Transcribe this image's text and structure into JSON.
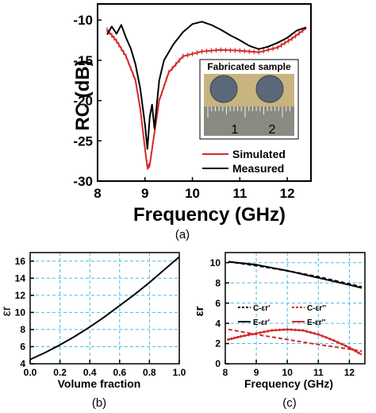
{
  "chart_data": [
    {
      "type": "line",
      "caption": "(a)",
      "xlabel": "Frequency (GHz)",
      "ylabel": "RC (dB)",
      "xlim": [
        8,
        12.5
      ],
      "ylim": [
        -30,
        -8
      ],
      "xticks": [
        "8",
        "9",
        "10",
        "11",
        "12"
      ],
      "yticks": [
        "-10",
        "-15",
        "-20",
        "-25",
        "-30"
      ],
      "grid": false,
      "legend": "bottom-right",
      "inset": {
        "title": "Fabricated sample",
        "ruler_labels": [
          "1",
          "2"
        ]
      },
      "series": [
        {
          "name": "Simulated",
          "color": "#d42a2a",
          "marker": "tick",
          "x": [
            8.2,
            8.4,
            8.6,
            8.8,
            8.9,
            9.0,
            9.05,
            9.1,
            9.2,
            9.3,
            9.5,
            9.8,
            10.2,
            10.6,
            11.0,
            11.4,
            11.8,
            12.1,
            12.4
          ],
          "y": [
            -11.2,
            -12.6,
            -14.5,
            -17.5,
            -21,
            -26,
            -28.3,
            -28,
            -24,
            -20,
            -16.5,
            -14.5,
            -13.9,
            -13.7,
            -13.8,
            -14.0,
            -13.4,
            -12.3,
            -11.0
          ]
        },
        {
          "name": "Measured",
          "color": "#000000",
          "marker": "none",
          "x": [
            8.2,
            8.3,
            8.4,
            8.5,
            8.6,
            8.7,
            8.8,
            8.9,
            9.0,
            9.05,
            9.1,
            9.15,
            9.2,
            9.3,
            9.4,
            9.6,
            9.8,
            10.0,
            10.2,
            10.4,
            10.6,
            10.8,
            11.0,
            11.2,
            11.4,
            11.6,
            11.8,
            12.0,
            12.2,
            12.4
          ],
          "y": [
            -11.8,
            -10.8,
            -11.7,
            -10.6,
            -12.2,
            -13.5,
            -15.5,
            -18.5,
            -23,
            -26,
            -22,
            -20.5,
            -23.5,
            -17.5,
            -15.0,
            -13.0,
            -11.5,
            -10.5,
            -10.2,
            -10.6,
            -11.2,
            -11.9,
            -12.5,
            -13.2,
            -13.6,
            -13.3,
            -12.8,
            -12.2,
            -11.3,
            -10.9
          ]
        }
      ]
    },
    {
      "type": "line",
      "caption": "(b)",
      "xlabel": "Volume fraction",
      "ylabel": "εr",
      "xlim": [
        0,
        1
      ],
      "ylim": [
        4,
        17
      ],
      "xticks": [
        "0.0",
        "0.2",
        "0.4",
        "0.6",
        "0.8",
        "1.0"
      ],
      "yticks": [
        "4",
        "6",
        "8",
        "10",
        "12",
        "14",
        "16"
      ],
      "grid": true,
      "series": [
        {
          "color": "#000000",
          "x": [
            0.0,
            0.1,
            0.2,
            0.3,
            0.4,
            0.5,
            0.6,
            0.7,
            0.8,
            0.9,
            1.0
          ],
          "y": [
            4.5,
            5.3,
            6.2,
            7.2,
            8.3,
            9.5,
            10.8,
            12.1,
            13.5,
            15.0,
            16.5
          ]
        }
      ]
    },
    {
      "type": "line",
      "caption": "(c)",
      "xlabel": "Frequency (GHz)",
      "ylabel": "εr",
      "xlim": [
        8,
        12.5
      ],
      "ylim": [
        0,
        11
      ],
      "xticks": [
        "8",
        "9",
        "10",
        "11",
        "12"
      ],
      "yticks": [
        "0",
        "2",
        "4",
        "6",
        "8",
        "10"
      ],
      "grid": true,
      "legend": "center",
      "series": [
        {
          "name": "C-εr'",
          "color": "#000000",
          "dash": "5,3",
          "x": [
            8.1,
            9,
            10,
            11,
            12,
            12.4
          ],
          "y": [
            10.1,
            9.7,
            9.2,
            8.6,
            7.9,
            7.6
          ]
        },
        {
          "name": "C-εr''",
          "color": "#d42a2a",
          "dash": "5,3",
          "x": [
            8.1,
            9,
            10,
            11,
            12,
            12.4
          ],
          "y": [
            3.4,
            2.9,
            2.4,
            1.9,
            1.45,
            1.25
          ]
        },
        {
          "name": "E-εr'",
          "color": "#000000",
          "dash": "none",
          "x": [
            8.1,
            9,
            10,
            11,
            12,
            12.4
          ],
          "y": [
            10.1,
            9.8,
            9.2,
            8.5,
            7.8,
            7.5
          ]
        },
        {
          "name": "E-εr''",
          "color": "#d42a2a",
          "dash": "none",
          "marker": "dot",
          "x": [
            8.1,
            8.5,
            9,
            9.5,
            10,
            10.5,
            11,
            11.5,
            12,
            12.4
          ],
          "y": [
            2.4,
            2.7,
            3.0,
            3.3,
            3.4,
            3.3,
            2.9,
            2.3,
            1.6,
            0.9
          ]
        }
      ]
    }
  ]
}
